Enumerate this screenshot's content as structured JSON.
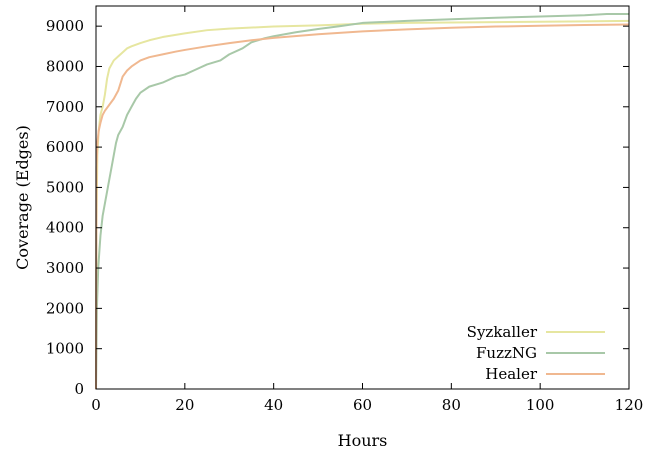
{
  "chart_data": {
    "type": "line",
    "title": "",
    "xlabel": "Hours",
    "ylabel": "Coverage (Edges)",
    "xlim": [
      0,
      120
    ],
    "ylim": [
      0,
      9500
    ],
    "xticks": [
      0,
      20,
      40,
      60,
      80,
      100,
      120
    ],
    "yticks": [
      0,
      1000,
      2000,
      3000,
      4000,
      5000,
      6000,
      7000,
      8000,
      9000
    ],
    "grid": false,
    "legend_position": "bottom-right",
    "series": [
      {
        "name": "Syzkaller",
        "color": "#e6e6a0",
        "points": [
          [
            0,
            0
          ],
          [
            0.1,
            4000
          ],
          [
            0.3,
            5800
          ],
          [
            0.6,
            6400
          ],
          [
            1,
            6800
          ],
          [
            1.5,
            7000
          ],
          [
            2,
            7300
          ],
          [
            2.5,
            7700
          ],
          [
            3,
            7950
          ],
          [
            4,
            8150
          ],
          [
            5,
            8250
          ],
          [
            6,
            8350
          ],
          [
            7,
            8450
          ],
          [
            8,
            8500
          ],
          [
            10,
            8580
          ],
          [
            12,
            8650
          ],
          [
            15,
            8730
          ],
          [
            20,
            8820
          ],
          [
            25,
            8900
          ],
          [
            30,
            8940
          ],
          [
            40,
            8990
          ],
          [
            50,
            9020
          ],
          [
            60,
            9060
          ],
          [
            70,
            9080
          ],
          [
            80,
            9090
          ],
          [
            90,
            9100
          ],
          [
            100,
            9110
          ],
          [
            110,
            9120
          ],
          [
            120,
            9130
          ]
        ]
      },
      {
        "name": "FuzzNG",
        "color": "#a8c8a8",
        "points": [
          [
            0,
            0
          ],
          [
            0.2,
            2000
          ],
          [
            0.5,
            3000
          ],
          [
            1,
            3800
          ],
          [
            1.5,
            4300
          ],
          [
            2,
            4600
          ],
          [
            2.5,
            4900
          ],
          [
            3,
            5200
          ],
          [
            3.5,
            5500
          ],
          [
            4,
            5800
          ],
          [
            4.5,
            6100
          ],
          [
            5,
            6300
          ],
          [
            6,
            6500
          ],
          [
            7,
            6800
          ],
          [
            8,
            7000
          ],
          [
            9,
            7200
          ],
          [
            10,
            7350
          ],
          [
            12,
            7500
          ],
          [
            15,
            7600
          ],
          [
            18,
            7750
          ],
          [
            20,
            7800
          ],
          [
            22,
            7900
          ],
          [
            25,
            8050
          ],
          [
            28,
            8150
          ],
          [
            30,
            8300
          ],
          [
            33,
            8450
          ],
          [
            35,
            8600
          ],
          [
            38,
            8700
          ],
          [
            40,
            8750
          ],
          [
            45,
            8850
          ],
          [
            50,
            8930
          ],
          [
            55,
            9000
          ],
          [
            60,
            9080
          ],
          [
            70,
            9130
          ],
          [
            80,
            9170
          ],
          [
            90,
            9210
          ],
          [
            100,
            9240
          ],
          [
            110,
            9270
          ],
          [
            115,
            9300
          ],
          [
            120,
            9300
          ]
        ]
      },
      {
        "name": "Healer",
        "color": "#f0b890",
        "points": [
          [
            0,
            0
          ],
          [
            0.1,
            5500
          ],
          [
            0.3,
            6100
          ],
          [
            0.6,
            6400
          ],
          [
            1,
            6600
          ],
          [
            1.5,
            6800
          ],
          [
            2,
            6900
          ],
          [
            3,
            7050
          ],
          [
            4,
            7200
          ],
          [
            5,
            7400
          ],
          [
            6,
            7750
          ],
          [
            7,
            7900
          ],
          [
            8,
            8000
          ],
          [
            10,
            8150
          ],
          [
            12,
            8230
          ],
          [
            15,
            8300
          ],
          [
            18,
            8370
          ],
          [
            20,
            8410
          ],
          [
            25,
            8500
          ],
          [
            30,
            8580
          ],
          [
            35,
            8650
          ],
          [
            40,
            8710
          ],
          [
            50,
            8800
          ],
          [
            60,
            8870
          ],
          [
            70,
            8920
          ],
          [
            80,
            8960
          ],
          [
            90,
            8990
          ],
          [
            100,
            9010
          ],
          [
            110,
            9030
          ],
          [
            120,
            9040
          ]
        ]
      }
    ]
  }
}
